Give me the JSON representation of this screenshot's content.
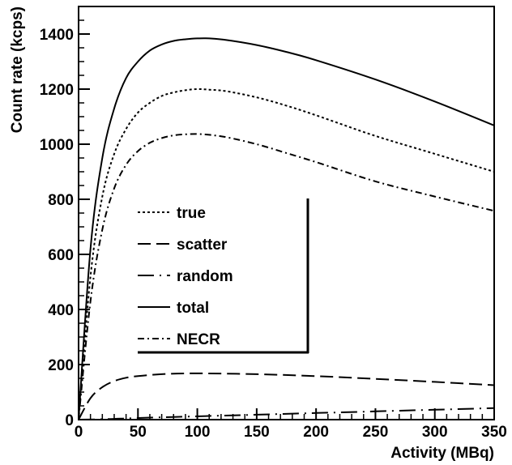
{
  "chart_data": {
    "type": "line",
    "xlabel": "Activity (MBq)",
    "ylabel": "Count rate (kcps)",
    "xlim": [
      0,
      350
    ],
    "ylim": [
      0,
      1500
    ],
    "xticks": [
      0,
      50,
      100,
      150,
      200,
      250,
      300,
      350
    ],
    "yticks": [
      0,
      200,
      400,
      600,
      800,
      1000,
      1200,
      1400
    ],
    "grid": false,
    "legend_placement": "center-left",
    "series": [
      {
        "name": "true",
        "dash": "dotted",
        "x": [
          0,
          10,
          20,
          30,
          40,
          50,
          60,
          70,
          80,
          90,
          100,
          110,
          125,
          150,
          175,
          200,
          250,
          300,
          350
        ],
        "values": [
          0,
          520,
          810,
          965,
          1055,
          1115,
          1150,
          1175,
          1188,
          1196,
          1200,
          1198,
          1192,
          1170,
          1140,
          1105,
          1030,
          965,
          900
        ]
      },
      {
        "name": "scatter",
        "dash": "long-dash",
        "x": [
          0,
          10,
          20,
          30,
          40,
          50,
          70,
          100,
          150,
          200,
          250,
          300,
          350
        ],
        "values": [
          0,
          78,
          118,
          140,
          152,
          158,
          165,
          168,
          165,
          158,
          148,
          137,
          125
        ]
      },
      {
        "name": "random",
        "dash": "long-dash-dot",
        "x": [
          0,
          25,
          50,
          100,
          150,
          200,
          250,
          300,
          350
        ],
        "values": [
          0,
          2,
          6,
          12,
          18,
          24,
          30,
          36,
          42
        ]
      },
      {
        "name": "total",
        "dash": "solid",
        "x": [
          0,
          10,
          20,
          30,
          40,
          50,
          60,
          70,
          80,
          90,
          100,
          110,
          125,
          150,
          175,
          200,
          250,
          300,
          350
        ],
        "values": [
          0,
          620,
          950,
          1130,
          1240,
          1300,
          1340,
          1362,
          1375,
          1381,
          1384,
          1384,
          1378,
          1360,
          1335,
          1305,
          1235,
          1155,
          1068
        ]
      },
      {
        "name": "NECR",
        "dash": "dash-dot",
        "x": [
          0,
          10,
          20,
          30,
          40,
          50,
          60,
          70,
          80,
          90,
          100,
          110,
          125,
          150,
          175,
          200,
          250,
          300,
          350
        ],
        "values": [
          0,
          430,
          690,
          840,
          925,
          975,
          1005,
          1022,
          1032,
          1036,
          1037,
          1034,
          1025,
          1000,
          968,
          935,
          865,
          810,
          758
        ]
      }
    ]
  }
}
